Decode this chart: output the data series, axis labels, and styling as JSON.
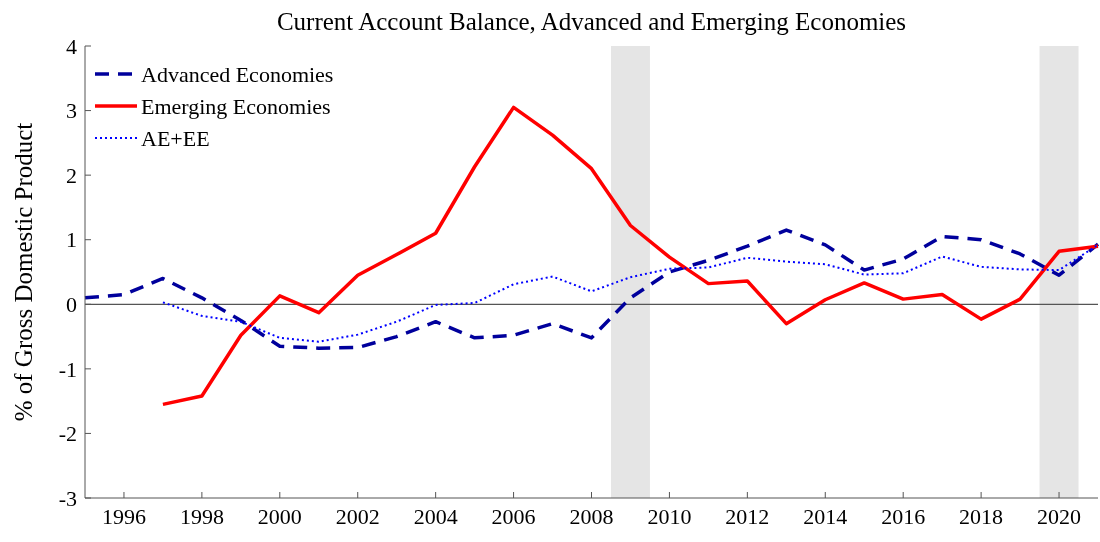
{
  "chart_data": {
    "type": "line",
    "title": "Current Account Balance, Advanced and Emerging Economies",
    "ylabel": "% of Gross Domestic Product",
    "xlim": [
      1995,
      2021
    ],
    "xticks": [
      1996,
      1998,
      2000,
      2002,
      2004,
      2006,
      2008,
      2010,
      2012,
      2014,
      2016,
      2018,
      2020
    ],
    "ylim": [
      -3,
      4
    ],
    "yticks": [
      -3,
      -2,
      -1,
      0,
      1,
      2,
      3,
      4
    ],
    "grid": false,
    "legend": "top left",
    "ref_lines": [
      {
        "axis": "y",
        "value": 0,
        "color": "#555555"
      }
    ],
    "bands": [
      {
        "axis": "x",
        "from": 2008.5,
        "to": 2009.5,
        "color": "#e5e5e5"
      },
      {
        "axis": "x",
        "from": 2019.5,
        "to": 2020.5,
        "color": "#e5e5e5"
      }
    ],
    "series": [
      {
        "name": "Advanced Economies",
        "color": "#00009c",
        "line_style": "dashed",
        "x": [
          1995,
          1996,
          1997,
          1998,
          1999,
          2000,
          2001,
          2002,
          2003,
          2004,
          2005,
          2006,
          2007,
          2008,
          2009,
          2010,
          2011,
          2012,
          2013,
          2014,
          2015,
          2016,
          2017,
          2018,
          2019,
          2020,
          2021
        ],
        "values": [
          0.1,
          0.15,
          0.4,
          0.1,
          -0.25,
          -0.65,
          -0.68,
          -0.67,
          -0.5,
          -0.27,
          -0.52,
          -0.48,
          -0.3,
          -0.52,
          0.1,
          0.5,
          0.68,
          0.9,
          1.15,
          0.92,
          0.53,
          0.7,
          1.05,
          1.0,
          0.78,
          0.45,
          0.93
        ]
      },
      {
        "name": "Emerging Economies",
        "color": "#ff0000",
        "line_style": "solid",
        "x": [
          1997,
          1998,
          1999,
          2000,
          2001,
          2002,
          2003,
          2004,
          2005,
          2006,
          2007,
          2008,
          2009,
          2010,
          2011,
          2012,
          2013,
          2014,
          2015,
          2016,
          2017,
          2018,
          2019,
          2020,
          2021
        ],
        "values": [
          -1.55,
          -1.42,
          -0.48,
          0.13,
          -0.13,
          0.45,
          0.77,
          1.1,
          2.13,
          3.05,
          2.62,
          2.1,
          1.22,
          0.73,
          0.32,
          0.36,
          -0.3,
          0.07,
          0.33,
          0.08,
          0.15,
          -0.23,
          0.08,
          0.82,
          0.9
        ]
      },
      {
        "name": "AE+EE",
        "color": "#0000ff",
        "line_style": "dotted",
        "x": [
          1997,
          1998,
          1999,
          2000,
          2001,
          2002,
          2003,
          2004,
          2005,
          2006,
          2007,
          2008,
          2009,
          2010,
          2011,
          2012,
          2013,
          2014,
          2015,
          2016,
          2017,
          2018,
          2019,
          2020,
          2021
        ],
        "values": [
          0.03,
          -0.18,
          -0.27,
          -0.52,
          -0.58,
          -0.47,
          -0.27,
          -0.01,
          0.02,
          0.31,
          0.43,
          0.2,
          0.42,
          0.55,
          0.57,
          0.72,
          0.66,
          0.62,
          0.46,
          0.48,
          0.74,
          0.58,
          0.54,
          0.53,
          0.92
        ]
      }
    ]
  }
}
